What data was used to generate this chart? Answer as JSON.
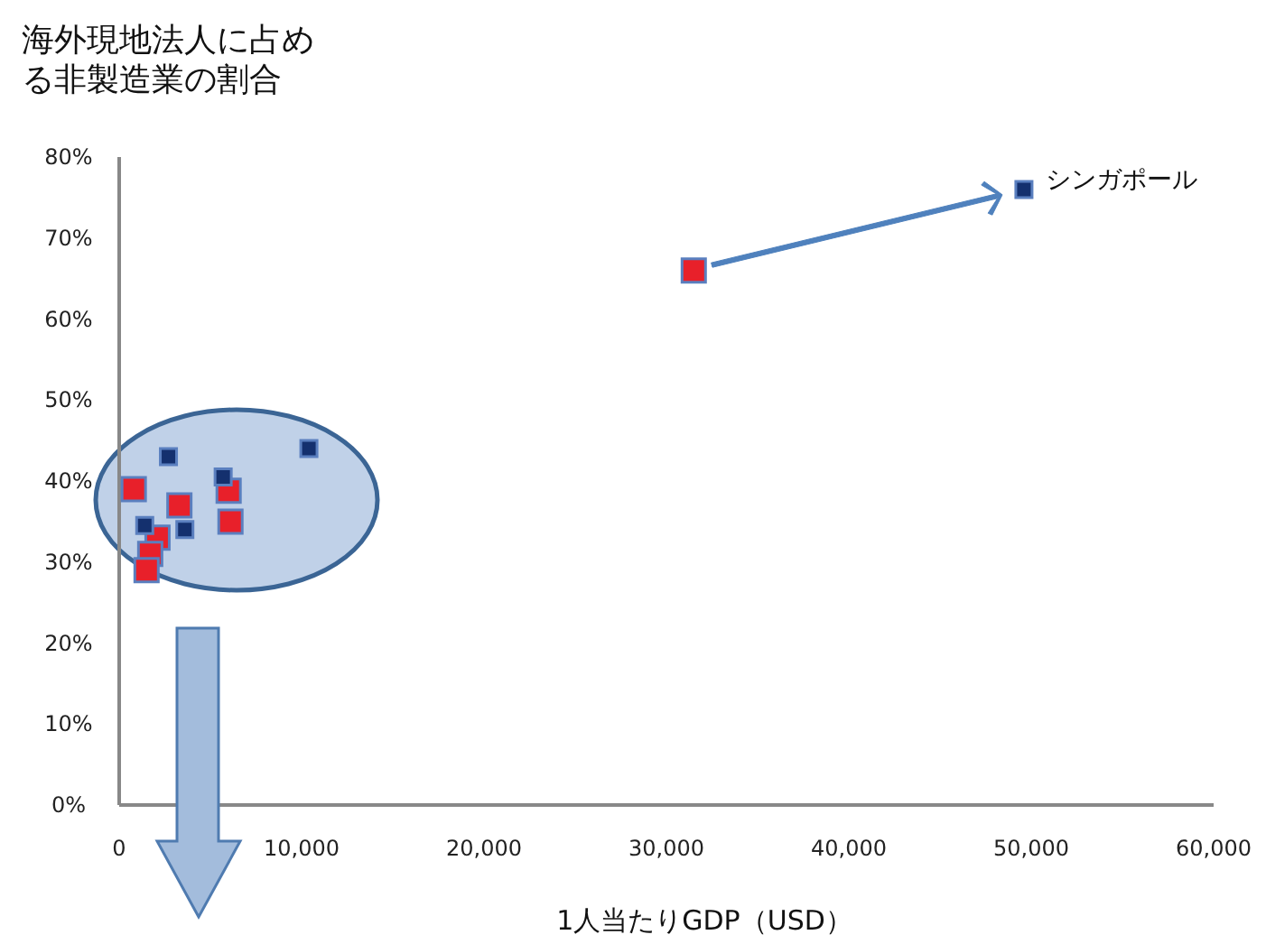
{
  "chart_data": {
    "type": "scatter",
    "ylabel": "海外現地法人に占める非製造業の割合",
    "xlabel": "1人当たりGDP（USD）",
    "marker": "square",
    "grid": false,
    "xlim": [
      0,
      60000
    ],
    "xticks": [
      0,
      {
        "value": 10000,
        "label": "10,000"
      },
      {
        "value": 20000,
        "label": "20,000"
      },
      {
        "value": 30000,
        "label": "30,000"
      },
      {
        "value": 40000,
        "label": "40,000"
      },
      {
        "value": 50000,
        "label": "50,000"
      },
      {
        "value": 60000,
        "label": "60,000"
      }
    ],
    "ylim": [
      0,
      80
    ],
    "yticks": [
      {
        "value": 0,
        "label": "0%"
      },
      {
        "value": 10,
        "label": "10%"
      },
      {
        "value": 20,
        "label": "20%"
      },
      {
        "value": 30,
        "label": "30%"
      },
      {
        "value": 40,
        "label": "40%"
      },
      {
        "value": 50,
        "label": "50%"
      },
      {
        "value": 60,
        "label": "60%"
      },
      {
        "value": 70,
        "label": "70%"
      },
      {
        "value": 80,
        "label": "80%"
      }
    ],
    "series": [
      {
        "color": "#e8202a",
        "x": [
          800,
          3300,
          6100,
          2100,
          1700,
          1500,
          6000,
          31500
        ],
        "values": [
          39,
          37,
          35,
          33,
          31,
          29,
          38.8,
          66
        ]
      },
      {
        "color": "#14306e",
        "x": [
          2700,
          10400,
          5700,
          3600,
          1400,
          49600
        ],
        "values": [
          43,
          44,
          40.5,
          34,
          34.5,
          76
        ]
      }
    ],
    "annotations": [
      "シンガポール"
    ]
  }
}
